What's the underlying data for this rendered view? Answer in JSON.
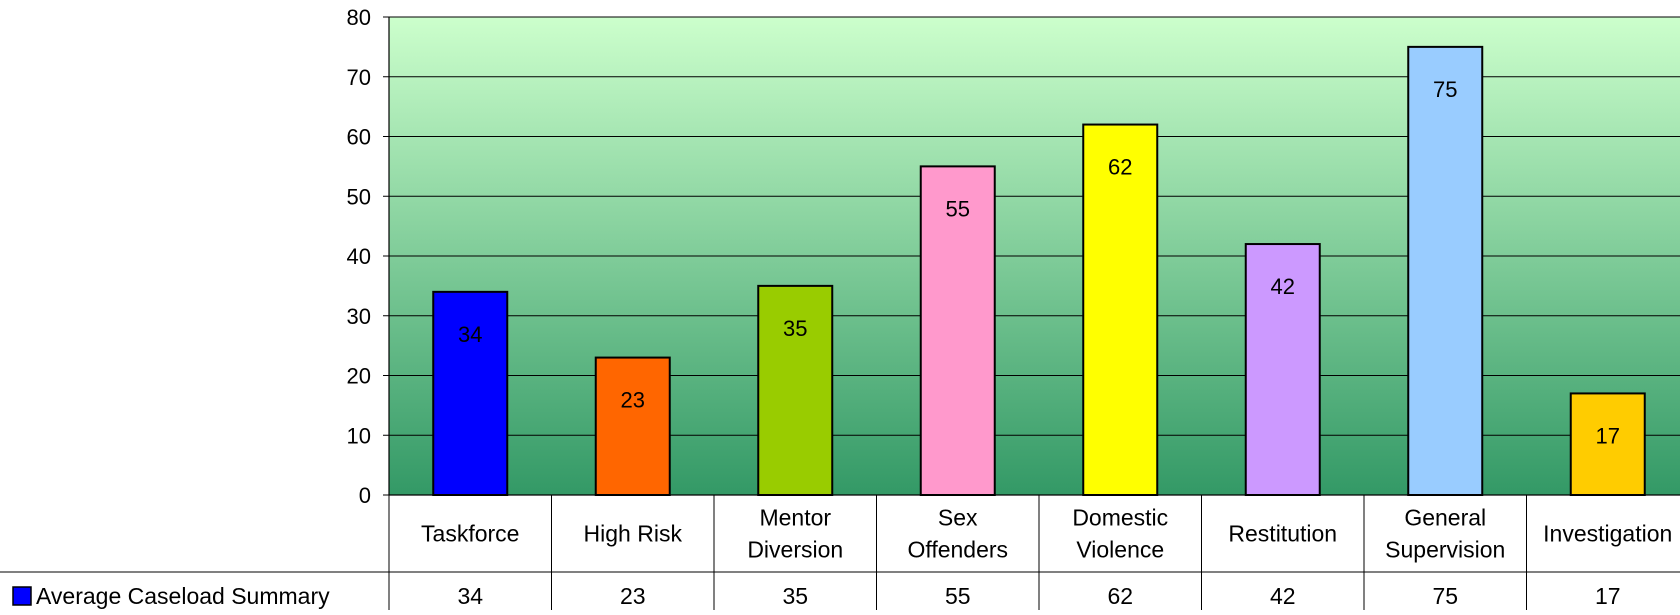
{
  "chart_data": {
    "type": "bar",
    "categories": [
      "Taskforce",
      "High Risk",
      "Mentor Diversion",
      "Sex Offenders",
      "Domestic Violence",
      "Restitution",
      "General Supervision",
      "Investigation"
    ],
    "category_label_lines": [
      [
        "Taskforce"
      ],
      [
        "High Risk"
      ],
      [
        "Mentor",
        "Diversion"
      ],
      [
        "Sex",
        "Offenders"
      ],
      [
        "Domestic",
        "Violence"
      ],
      [
        "Restitution"
      ],
      [
        "General",
        "Supervision"
      ],
      [
        "Investigation"
      ]
    ],
    "series": [
      {
        "name": "Average Caseload Summary",
        "values": [
          34,
          23,
          35,
          55,
          62,
          42,
          75,
          17
        ],
        "color": "#0000ff"
      }
    ],
    "bar_colors": [
      "#0000ff",
      "#ff6600",
      "#99cc00",
      "#ff99cc",
      "#ffff00",
      "#cc99ff",
      "#99ccff",
      "#ffcc00"
    ],
    "ylim": [
      0,
      80
    ],
    "yticks": [
      "0",
      "10",
      "20",
      "30",
      "40",
      "50",
      "60",
      "70",
      "80"
    ],
    "grid": true,
    "data_labels": true,
    "legend_placement": "data table row (left)",
    "plot_background": {
      "top_color": "#ccffcc",
      "bottom_color": "#339966"
    },
    "title": "",
    "xlabel": "",
    "ylabel": ""
  }
}
